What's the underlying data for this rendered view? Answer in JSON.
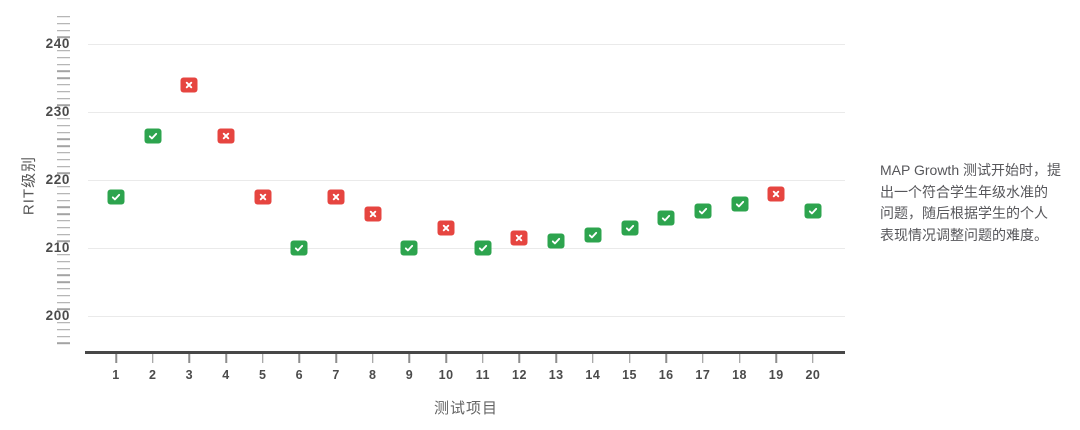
{
  "chart_data": {
    "type": "scatter",
    "title": "",
    "xlabel": "测试项目",
    "ylabel": "RIT级别",
    "yticks": [
      200,
      210,
      220,
      230,
      240
    ],
    "ylim": [
      196,
      244
    ],
    "minor_tick_step": 1,
    "grid": true,
    "legend": "none",
    "colors": {
      "correct": "#2da44e",
      "incorrect": "#e64540"
    },
    "marker_glyphs": {
      "correct": "check-icon",
      "incorrect": "cross-icon"
    },
    "points": [
      {
        "test_item": 1,
        "rit": 217.5,
        "result": "correct"
      },
      {
        "test_item": 2,
        "rit": 226.5,
        "result": "correct"
      },
      {
        "test_item": 3,
        "rit": 234,
        "result": "incorrect"
      },
      {
        "test_item": 4,
        "rit": 226.5,
        "result": "incorrect"
      },
      {
        "test_item": 5,
        "rit": 217.5,
        "result": "incorrect"
      },
      {
        "test_item": 6,
        "rit": 210,
        "result": "correct"
      },
      {
        "test_item": 7,
        "rit": 217.5,
        "result": "incorrect"
      },
      {
        "test_item": 8,
        "rit": 215,
        "result": "incorrect"
      },
      {
        "test_item": 9,
        "rit": 210,
        "result": "correct"
      },
      {
        "test_item": 10,
        "rit": 213,
        "result": "incorrect"
      },
      {
        "test_item": 11,
        "rit": 210,
        "result": "correct"
      },
      {
        "test_item": 12,
        "rit": 211.5,
        "result": "incorrect"
      },
      {
        "test_item": 13,
        "rit": 211,
        "result": "correct"
      },
      {
        "test_item": 14,
        "rit": 212,
        "result": "correct"
      },
      {
        "test_item": 15,
        "rit": 213,
        "result": "correct"
      },
      {
        "test_item": 16,
        "rit": 214.5,
        "result": "correct"
      },
      {
        "test_item": 17,
        "rit": 215.5,
        "result": "correct"
      },
      {
        "test_item": 18,
        "rit": 216.5,
        "result": "correct"
      },
      {
        "test_item": 19,
        "rit": 218,
        "result": "incorrect"
      },
      {
        "test_item": 20,
        "rit": 215.5,
        "result": "correct"
      }
    ]
  },
  "annotation": {
    "full_text": "MAP Growth 测试开始时，提出一个符合学生年级水准的问题，随后根据学生的个人表现情况调整问题的难度。",
    "lines": [
      "MAP Growth 测试开始时，提",
      "出一个符合学生年级水准的",
      "问题，随后根据学生的个人",
      "表现情况调整问题的难度。"
    ]
  }
}
